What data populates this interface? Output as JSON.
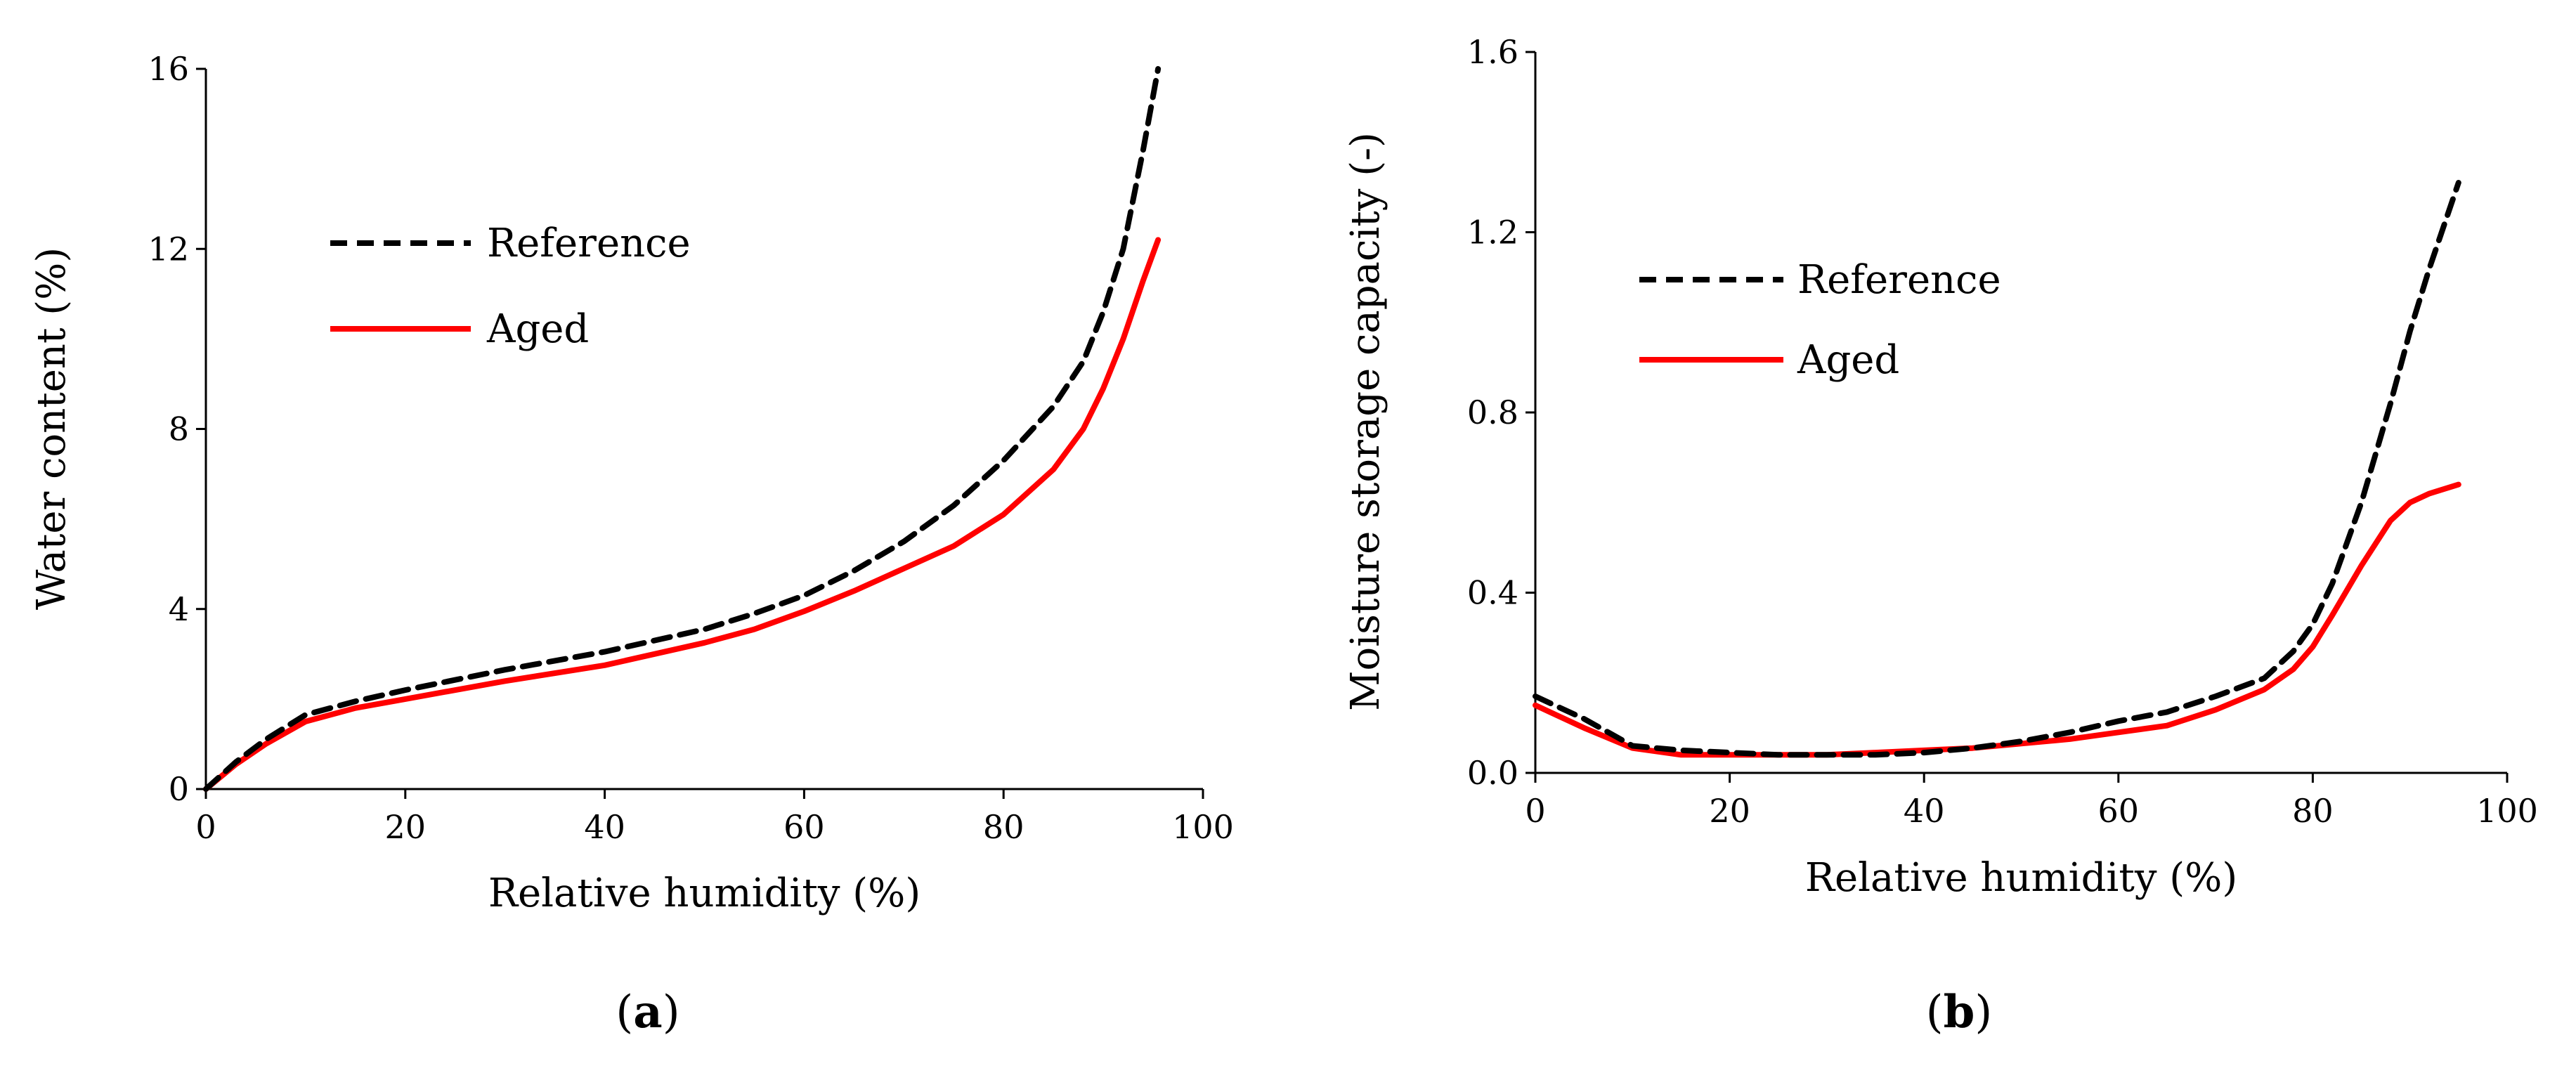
{
  "chart_data": [
    {
      "type": "line",
      "panel_label": "(a)",
      "panel_letter": "a",
      "title": "",
      "xlabel": "Relative humidity (%)",
      "ylabel": "Water content (%)",
      "xlim": [
        0,
        100
      ],
      "ylim": [
        0,
        16
      ],
      "xticks": [
        0,
        20,
        40,
        60,
        80,
        100
      ],
      "yticks": [
        0,
        4,
        8,
        12,
        16
      ],
      "xtick_labels": [
        "0",
        "20",
        "40",
        "60",
        "80",
        "100"
      ],
      "ytick_labels": [
        "0",
        "4",
        "8",
        "12",
        "16"
      ],
      "grid": false,
      "legend_position": "upper-left",
      "series": [
        {
          "name": "Reference",
          "color": "#000000",
          "dash": "dashed",
          "x": [
            0,
            3,
            6,
            10,
            15,
            20,
            30,
            40,
            50,
            55,
            60,
            65,
            70,
            75,
            80,
            85,
            88,
            90,
            92,
            94,
            95.5
          ],
          "y": [
            0,
            0.6,
            1.1,
            1.65,
            1.95,
            2.2,
            2.65,
            3.05,
            3.55,
            3.9,
            4.3,
            4.85,
            5.5,
            6.3,
            7.3,
            8.5,
            9.5,
            10.6,
            12.0,
            14.2,
            16.0
          ]
        },
        {
          "name": "Aged",
          "color": "#ff0000",
          "dash": "solid",
          "x": [
            0,
            3,
            6,
            10,
            15,
            20,
            30,
            40,
            50,
            55,
            60,
            65,
            70,
            75,
            80,
            85,
            88,
            90,
            92,
            94,
            95.5
          ],
          "y": [
            0,
            0.55,
            1.0,
            1.5,
            1.8,
            2.0,
            2.4,
            2.75,
            3.25,
            3.55,
            3.95,
            4.4,
            4.9,
            5.4,
            6.1,
            7.1,
            8.0,
            8.9,
            10.0,
            11.3,
            12.2
          ]
        }
      ]
    },
    {
      "type": "line",
      "panel_label": "(b)",
      "panel_letter": "b",
      "title": "",
      "xlabel": "Relative humidity (%)",
      "ylabel": "Moisture storage capacity (-)",
      "xlim": [
        0,
        100
      ],
      "ylim": [
        0,
        1.6
      ],
      "xticks": [
        0,
        20,
        40,
        60,
        80,
        100
      ],
      "yticks": [
        0,
        0.4,
        0.8,
        1.2,
        1.6
      ],
      "xtick_labels": [
        "0",
        "20",
        "40",
        "60",
        "80",
        "100"
      ],
      "ytick_labels": [
        "0.0",
        "0.4",
        "0.8",
        "1.2",
        "1.6"
      ],
      "grid": false,
      "legend_position": "upper-left",
      "series": [
        {
          "name": "Reference",
          "color": "#000000",
          "dash": "dashed",
          "x": [
            0,
            5,
            10,
            15,
            20,
            25,
            30,
            35,
            40,
            45,
            50,
            55,
            60,
            65,
            70,
            75,
            78,
            80,
            82,
            85,
            88,
            90,
            92,
            95
          ],
          "y": [
            0.17,
            0.12,
            0.06,
            0.05,
            0.045,
            0.04,
            0.04,
            0.04,
            0.045,
            0.055,
            0.07,
            0.09,
            0.115,
            0.135,
            0.17,
            0.21,
            0.27,
            0.33,
            0.42,
            0.6,
            0.82,
            0.98,
            1.12,
            1.31
          ]
        },
        {
          "name": "Aged",
          "color": "#ff0000",
          "dash": "solid",
          "x": [
            0,
            5,
            10,
            15,
            20,
            25,
            30,
            35,
            40,
            45,
            50,
            55,
            60,
            65,
            70,
            75,
            78,
            80,
            82,
            85,
            88,
            90,
            92,
            95
          ],
          "y": [
            0.15,
            0.1,
            0.055,
            0.04,
            0.04,
            0.04,
            0.04,
            0.045,
            0.05,
            0.055,
            0.065,
            0.075,
            0.09,
            0.105,
            0.14,
            0.185,
            0.23,
            0.28,
            0.35,
            0.46,
            0.56,
            0.6,
            0.62,
            0.64
          ]
        }
      ]
    }
  ]
}
